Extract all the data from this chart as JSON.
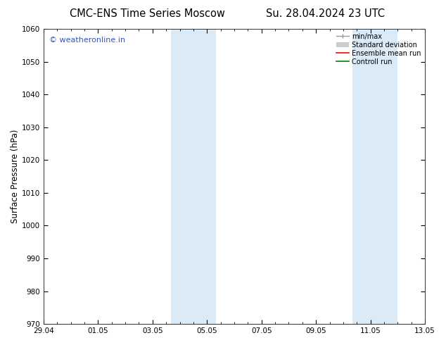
{
  "title_left": "CMC-ENS Time Series Moscow",
  "title_right": "Su. 28.04.2024 23 UTC",
  "ylabel": "Surface Pressure (hPa)",
  "ylim": [
    970,
    1060
  ],
  "yticks": [
    970,
    980,
    990,
    1000,
    1010,
    1020,
    1030,
    1040,
    1050,
    1060
  ],
  "xtick_labels": [
    "29.04",
    "01.05",
    "03.05",
    "05.05",
    "07.05",
    "09.05",
    "11.05",
    "13.05"
  ],
  "xtick_positions": [
    0,
    2,
    4,
    6,
    8,
    10,
    12,
    14
  ],
  "xlim": [
    0,
    14
  ],
  "shaded_bands": [
    {
      "x_start": 4.67,
      "x_end": 6.33
    },
    {
      "x_start": 11.33,
      "x_end": 13.0
    }
  ],
  "shaded_color": "#daeaf7",
  "watermark_text": "© weatheronline.in",
  "watermark_color": "#3355bb",
  "legend_items": [
    {
      "label": "min/max",
      "type": "minmax",
      "color": "#999999"
    },
    {
      "label": "Standard deviation",
      "type": "patch",
      "color": "#cccccc"
    },
    {
      "label": "Ensemble mean run",
      "type": "line",
      "color": "red"
    },
    {
      "label": "Controll run",
      "type": "line",
      "color": "green"
    }
  ],
  "bg_color": "#ffffff",
  "tick_fontsize": 7.5,
  "label_fontsize": 8.5,
  "title_fontsize": 10.5
}
